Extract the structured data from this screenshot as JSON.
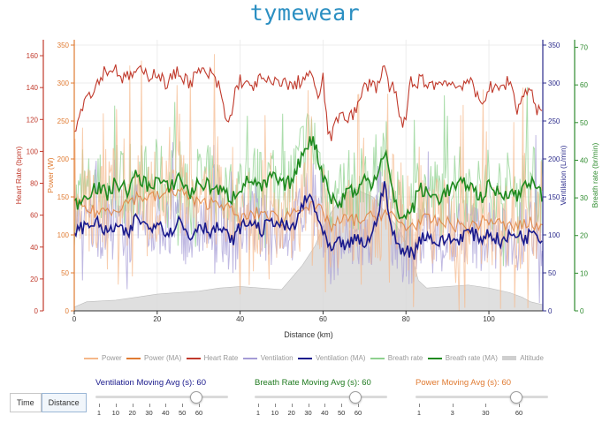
{
  "app": {
    "title": "tymewear"
  },
  "controls": {
    "time_label": "Time",
    "distance_label": "Distance",
    "active": "Distance"
  },
  "sliders": [
    {
      "label": "Ventilation Moving Avg (s): 60",
      "color": "#1a1a8c",
      "ticks": [
        "1",
        "10",
        "20",
        "30",
        "40",
        "50",
        "60"
      ],
      "value_fraction": 1.0
    },
    {
      "label": "Breath Rate Moving Avg (s): 60",
      "color": "#1f7a1f",
      "ticks": [
        "1",
        "10",
        "20",
        "30",
        "40",
        "50",
        "60"
      ],
      "value_fraction": 1.0
    },
    {
      "label": "Power Moving Avg (s): 60",
      "color": "#e07b32",
      "ticks": [
        "1",
        "3",
        "30",
        "60"
      ],
      "value_fraction": 1.0
    }
  ],
  "chart_data": {
    "type": "line",
    "xlabel": "Distance (km)",
    "x_ticks": [
      0,
      20,
      40,
      60,
      80,
      100
    ],
    "xlim": [
      0,
      113
    ],
    "grid": true,
    "legend_position": "bottom",
    "axes": {
      "heart_rate": {
        "label": "Heart Rate (bpm)",
        "color": "#c0392b",
        "ylim": [
          0,
          170
        ],
        "ticks": [
          0,
          20,
          40,
          60,
          80,
          100,
          120,
          140,
          160
        ]
      },
      "power": {
        "label": "Power (W)",
        "color": "#e07b32",
        "ylim": [
          0,
          357
        ],
        "ticks": [
          0,
          50,
          100,
          150,
          200,
          250,
          300,
          350
        ]
      },
      "ventilation": {
        "label": "Ventilation (L/min)",
        "color": "#2c2c8c",
        "ylim": [
          0,
          357
        ],
        "ticks": [
          0,
          50,
          100,
          150,
          200,
          250,
          300,
          350
        ]
      },
      "breath_rate": {
        "label": "Breath rate (br/min)",
        "color": "#2e8b2e",
        "ylim": [
          0,
          72
        ],
        "ticks": [
          0,
          10,
          20,
          30,
          40,
          50,
          60,
          70
        ]
      }
    },
    "legend": [
      {
        "name": "Power",
        "color": "#f5b88a"
      },
      {
        "name": "Power (MA)",
        "color": "#e07b32"
      },
      {
        "name": "Heart Rate",
        "color": "#c0392b"
      },
      {
        "name": "Ventilation",
        "color": "#a59bd6"
      },
      {
        "name": "Ventilation (MA)",
        "color": "#1a1a8c"
      },
      {
        "name": "Breath rate",
        "color": "#8fd18f"
      },
      {
        "name": "Breath rate (MA)",
        "color": "#1f8a1f"
      },
      {
        "name": "Altitude",
        "color": "#cfcfcf"
      }
    ],
    "series": [
      {
        "name": "Heart Rate",
        "axis": "heart_rate",
        "x": [
          0,
          1,
          2,
          3,
          5,
          7,
          10,
          12,
          15,
          18,
          20,
          22,
          25,
          28,
          30,
          33,
          35,
          37,
          38,
          39,
          40,
          42,
          45,
          48,
          50,
          52,
          55,
          57,
          58,
          59,
          60,
          61,
          62,
          63,
          64,
          66,
          68,
          70,
          72,
          73,
          74,
          75,
          76,
          77,
          78,
          79,
          80,
          81,
          82,
          83,
          85,
          88,
          90,
          92,
          95,
          98,
          100,
          102,
          105,
          107,
          108,
          110,
          111,
          112
        ],
        "values": [
          115,
          120,
          130,
          135,
          140,
          150,
          152,
          145,
          150,
          148,
          150,
          142,
          150,
          143,
          150,
          148,
          140,
          115,
          125,
          140,
          145,
          140,
          145,
          142,
          145,
          140,
          145,
          150,
          138,
          135,
          145,
          115,
          110,
          115,
          125,
          122,
          125,
          140,
          145,
          138,
          150,
          155,
          135,
          145,
          125,
          115,
          120,
          145,
          140,
          145,
          143,
          142,
          145,
          140,
          145,
          130,
          140,
          138,
          145,
          125,
          135,
          140,
          130,
          125
        ]
      },
      {
        "name": "Power (MA)",
        "axis": "power",
        "x": [
          0,
          5,
          10,
          15,
          20,
          25,
          30,
          35,
          40,
          45,
          50,
          55,
          60,
          62,
          65,
          70,
          75,
          80,
          85,
          90,
          95,
          100,
          105,
          110,
          113
        ],
        "values": [
          140,
          130,
          135,
          150,
          150,
          160,
          140,
          145,
          120,
          130,
          120,
          140,
          130,
          110,
          120,
          120,
          130,
          110,
          120,
          115,
          110,
          120,
          110,
          115,
          110
        ]
      },
      {
        "name": "Ventilation (MA)",
        "axis": "ventilation",
        "x": [
          0,
          2,
          5,
          8,
          10,
          13,
          15,
          18,
          20,
          23,
          25,
          28,
          30,
          33,
          35,
          38,
          40,
          43,
          45,
          48,
          50,
          53,
          55,
          57,
          58,
          59,
          60,
          62,
          64,
          66,
          68,
          70,
          72,
          74,
          75,
          76,
          77,
          78,
          80,
          82,
          83,
          85,
          88,
          90,
          92,
          95,
          98,
          100,
          103,
          105,
          107,
          109,
          111,
          113
        ],
        "values": [
          105,
          110,
          118,
          102,
          112,
          98,
          125,
          108,
          120,
          100,
          122,
          95,
          115,
          105,
          110,
          92,
          110,
          118,
          105,
          120,
          112,
          108,
          140,
          150,
          135,
          120,
          100,
          78,
          90,
          85,
          95,
          88,
          100,
          150,
          165,
          120,
          100,
          85,
          80,
          75,
          95,
          100,
          88,
          96,
          92,
          105,
          95,
          103,
          90,
          98,
          102,
          95,
          110,
          90
        ]
      },
      {
        "name": "Breath rate (MA)",
        "axis": "breath_rate",
        "x": [
          0,
          2,
          5,
          8,
          10,
          13,
          15,
          18,
          20,
          23,
          25,
          28,
          30,
          33,
          35,
          38,
          40,
          43,
          45,
          48,
          50,
          53,
          55,
          57,
          58,
          59,
          60,
          61,
          62,
          64,
          66,
          68,
          70,
          72,
          74,
          75,
          76,
          77,
          78,
          80,
          82,
          83,
          85,
          88,
          90,
          92,
          95,
          98,
          100,
          103,
          105,
          107,
          109,
          111,
          113
        ],
        "values": [
          28,
          30,
          33,
          31,
          34,
          32,
          36,
          33,
          35,
          32,
          36,
          31,
          34,
          33,
          32,
          30,
          33,
          35,
          32,
          36,
          33,
          35,
          42,
          46,
          44,
          40,
          36,
          34,
          30,
          28,
          33,
          31,
          35,
          34,
          40,
          43,
          36,
          30,
          26,
          25,
          28,
          33,
          31,
          30,
          32,
          33,
          34,
          30,
          33,
          31,
          32,
          30,
          35,
          33,
          30
        ]
      },
      {
        "name": "Altitude",
        "axis": "ventilation",
        "x": [
          0,
          3,
          10,
          15,
          20,
          25,
          30,
          35,
          40,
          45,
          50,
          55,
          58,
          60,
          62,
          65,
          68,
          72,
          75,
          78,
          80,
          82,
          83,
          85,
          90,
          95,
          100,
          105,
          108,
          110,
          113
        ],
        "values": [
          5,
          12,
          14,
          18,
          22,
          24,
          26,
          30,
          32,
          30,
          28,
          60,
          85,
          110,
          130,
          155,
          160,
          150,
          130,
          110,
          90,
          60,
          40,
          30,
          32,
          34,
          30,
          24,
          18,
          12,
          8
        ]
      }
    ]
  }
}
